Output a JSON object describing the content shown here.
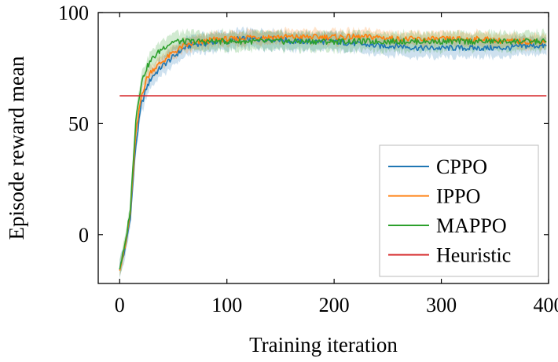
{
  "chart_data": {
    "type": "line",
    "title": "",
    "xlabel": "Training iteration",
    "ylabel": "Episode reward mean",
    "xlim": [
      -20,
      400
    ],
    "ylim": [
      -22,
      100
    ],
    "xticks": [
      0,
      100,
      200,
      300,
      400
    ],
    "yticks": [
      0,
      50,
      100
    ],
    "grid": false,
    "legend_position": "bottom-right",
    "series": [
      {
        "name": "CPPO",
        "color": "#1f77b4",
        "x": [
          0,
          5,
          10,
          15,
          20,
          25,
          30,
          40,
          50,
          60,
          70,
          80,
          90,
          100,
          110,
          120,
          130,
          140,
          150,
          160,
          180,
          200,
          220,
          240,
          260,
          280,
          300,
          320,
          340,
          360,
          380,
          398
        ],
        "values": [
          -15,
          -7,
          8,
          40,
          58,
          66,
          71,
          76,
          80,
          84,
          86,
          86,
          87,
          87,
          88,
          88,
          88,
          88,
          88,
          87,
          87,
          87,
          86,
          85,
          85,
          84,
          84,
          84,
          84,
          84,
          85,
          85
        ],
        "band": 4
      },
      {
        "name": "IPPO",
        "color": "#ff7f0e",
        "x": [
          0,
          5,
          10,
          15,
          20,
          25,
          30,
          40,
          50,
          60,
          70,
          80,
          90,
          100,
          110,
          120,
          130,
          140,
          150,
          160,
          180,
          200,
          220,
          240,
          260,
          280,
          300,
          320,
          340,
          360,
          380,
          398
        ],
        "values": [
          -15,
          -6,
          10,
          45,
          62,
          70,
          74,
          78,
          82,
          85,
          86,
          87,
          88,
          88,
          88,
          89,
          89,
          89,
          89,
          89,
          89,
          89,
          89,
          89,
          88,
          88,
          88,
          88,
          88,
          87,
          87,
          87
        ],
        "band": 3
      },
      {
        "name": "MAPPO",
        "color": "#2ca02c",
        "x": [
          0,
          5,
          10,
          15,
          20,
          25,
          30,
          40,
          50,
          60,
          70,
          80,
          90,
          100,
          110,
          120,
          130,
          140,
          150,
          160,
          180,
          200,
          220,
          240,
          260,
          280,
          300,
          320,
          340,
          360,
          380,
          398
        ],
        "values": [
          -15,
          -5,
          12,
          52,
          68,
          75,
          79,
          84,
          87,
          87,
          87,
          87,
          87,
          87,
          87,
          87,
          87,
          87,
          87,
          87,
          87,
          87,
          87,
          87,
          87,
          87,
          87,
          87,
          87,
          87,
          87,
          87
        ],
        "band": 4
      },
      {
        "name": "Heuristic",
        "color": "#d62728",
        "x": [
          0,
          398
        ],
        "values": [
          62.5,
          62.5
        ],
        "band": 0
      }
    ]
  }
}
